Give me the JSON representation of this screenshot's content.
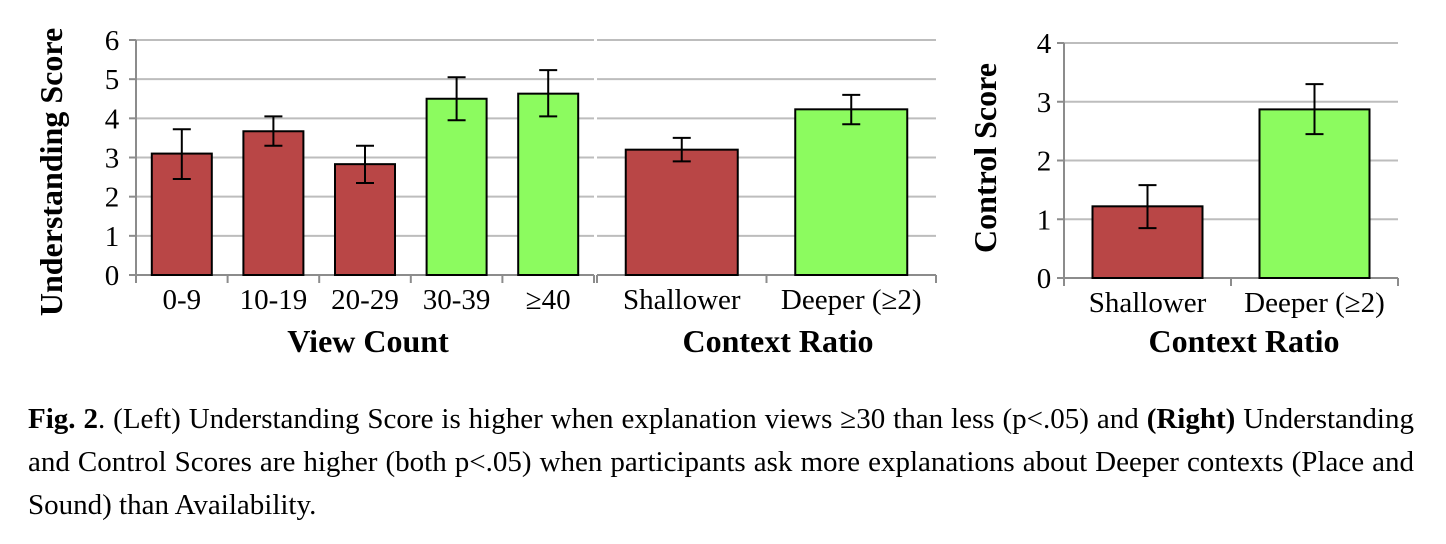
{
  "colors": {
    "below": "#b94646",
    "above": "#8cfb5f",
    "grid": "#bdbdbd",
    "axis": "#8c8c8c",
    "error": "#000000"
  },
  "chart_data": [
    {
      "type": "bar",
      "categories": [
        "0-9",
        "10-19",
        "20-29",
        "30-39",
        "≥40"
      ],
      "values": [
        3.1,
        3.67,
        2.83,
        4.5,
        4.63
      ],
      "error_low": [
        2.45,
        3.3,
        2.35,
        3.95,
        4.05
      ],
      "error_high": [
        3.72,
        4.05,
        3.3,
        5.05,
        5.23
      ],
      "bar_colors": [
        "below",
        "below",
        "below",
        "above",
        "above"
      ],
      "xlabel": "View Count",
      "ylabel": "Understanding Score",
      "ylim": [
        0,
        6
      ],
      "yticks": [
        0,
        1,
        2,
        3,
        4,
        5,
        6
      ],
      "grid": true
    },
    {
      "type": "bar",
      "categories": [
        "Shallower",
        "Deeper (≥2)"
      ],
      "values": [
        3.2,
        4.23
      ],
      "error_low": [
        2.9,
        3.85
      ],
      "error_high": [
        3.5,
        4.6
      ],
      "bar_colors": [
        "below",
        "above"
      ],
      "xlabel": "Context Ratio",
      "ylabel": "",
      "ylim": [
        0,
        6
      ],
      "grid": true
    },
    {
      "type": "bar",
      "categories": [
        "Shallower",
        "Deeper (≥2)"
      ],
      "values": [
        1.22,
        2.87
      ],
      "error_low": [
        0.85,
        2.45
      ],
      "error_high": [
        1.58,
        3.3
      ],
      "bar_colors": [
        "below",
        "above"
      ],
      "xlabel": "Context Ratio",
      "ylabel": "Control Score",
      "ylim": [
        0,
        4
      ],
      "yticks": [
        0,
        1,
        2,
        3,
        4
      ],
      "grid": true
    }
  ],
  "caption": {
    "fig_label": "Fig. 2",
    "part1": ". (Left) Understanding Score is higher when explanation views ≥30 than less (p<.05) and ",
    "right_label": "(Right)",
    "part2": " Understanding and Control Scores are higher (both p<.05) when participants ask more explanations about Deeper contexts (Place and Sound) than Availability."
  }
}
